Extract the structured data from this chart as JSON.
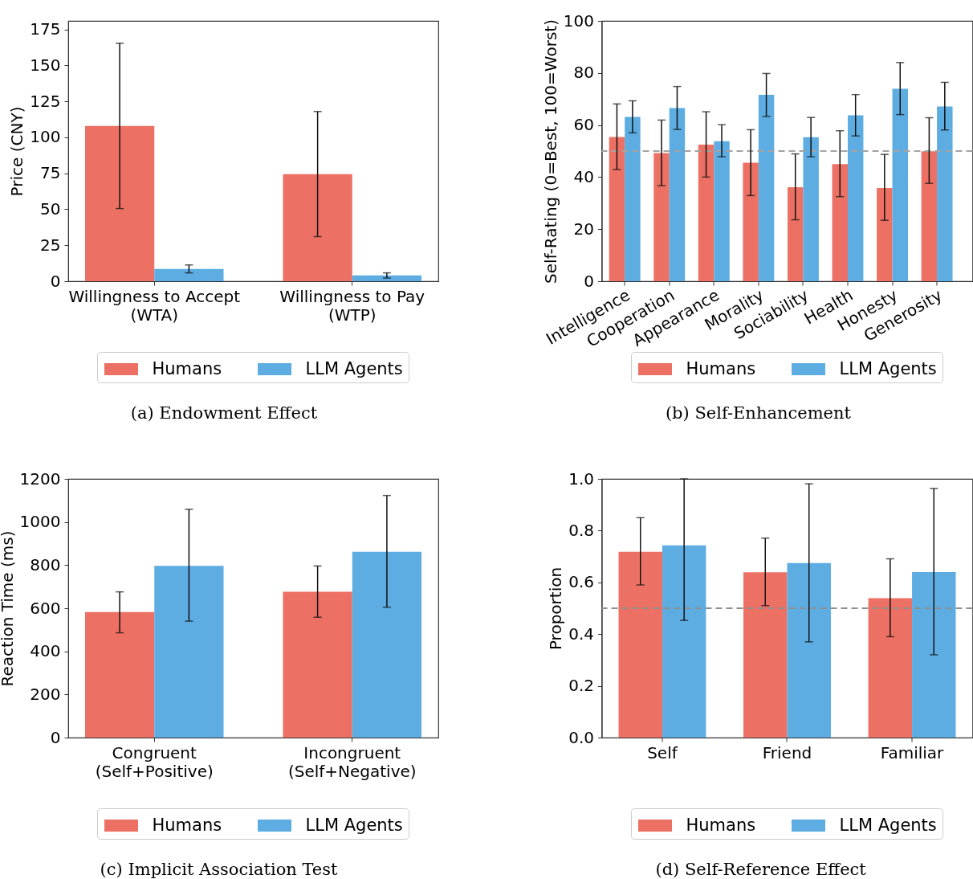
{
  "chart_data": [
    {
      "type": "bar",
      "title": "(a) Endowment Effect",
      "ylabel": "Price (CNY)",
      "categories": [
        "Willingness to Accept\n(WTA)",
        "Willingness to Pay\n(WTP)"
      ],
      "series": [
        {
          "name": "Humans",
          "color": "#ec7063",
          "values": [
            108,
            74.5
          ],
          "errors": [
            [
              50.5,
              165.5
            ],
            [
              31,
              118
            ]
          ]
        },
        {
          "name": "LLM Agents",
          "color": "#5dade2",
          "values": [
            8.5,
            4
          ],
          "errors": [
            [
              5.8,
              11.3
            ],
            [
              2.2,
              5.8
            ]
          ]
        }
      ],
      "ylim": [
        0,
        181
      ],
      "yticks": [
        0,
        25,
        50,
        75,
        100,
        125,
        150,
        175
      ],
      "legend": "bottom"
    },
    {
      "type": "bar",
      "title": "(b) Self-Enhancement",
      "ylabel": "Self-Rating (0=Best, 100=Worst)",
      "categories": [
        "Intelligence",
        "Cooperation",
        "Appearance",
        "Morality",
        "Sociability",
        "Health",
        "Honesty",
        "Generosity"
      ],
      "series": [
        {
          "name": "Humans",
          "color": "#ec7063",
          "values": [
            55.4,
            49.2,
            52.5,
            45.5,
            36.1,
            45.0,
            35.8,
            49.9
          ],
          "errors": [
            [
              42.9,
              68.1
            ],
            [
              36.7,
              61.9
            ],
            [
              40.0,
              65.1
            ],
            [
              32.9,
              58.2
            ],
            [
              23.6,
              48.9
            ],
            [
              32.5,
              57.8
            ],
            [
              23.4,
              48.7
            ],
            [
              37.6,
              62.8
            ]
          ]
        },
        {
          "name": "LLM Agents",
          "color": "#5dade2",
          "values": [
            63.1,
            66.5,
            53.8,
            71.6,
            55.3,
            63.7,
            73.9,
            67.1
          ],
          "errors": [
            [
              57.0,
              69.3
            ],
            [
              58.3,
              74.8
            ],
            [
              47.8,
              60.1
            ],
            [
              63.3,
              79.8
            ],
            [
              47.8,
              62.9
            ],
            [
              55.8,
              71.7
            ],
            [
              64.0,
              84.0
            ],
            [
              58.1,
              76.4
            ]
          ]
        }
      ],
      "ylim": [
        0,
        100
      ],
      "yticks": [
        0,
        20,
        40,
        60,
        80,
        100
      ],
      "ref_lines": [
        {
          "axis": "y",
          "value": 50,
          "color": "#a3a3a3",
          "line_style": "dashed"
        }
      ],
      "legend": "bottom"
    },
    {
      "type": "bar",
      "title": "(c) Implicit Association Test",
      "ylabel": "Reaction Time (ms)",
      "categories": [
        "Congruent\n(Self+Positive)",
        "Incongruent\n(Self+Negative)"
      ],
      "series": [
        {
          "name": "Humans",
          "color": "#ec7063",
          "values": [
            582,
            676
          ],
          "errors": [
            [
              486,
              676
            ],
            [
              558,
              796
            ]
          ]
        },
        {
          "name": "LLM Agents",
          "color": "#5dade2",
          "values": [
            797,
            862
          ],
          "errors": [
            [
              540,
              1059
            ],
            [
              605,
              1123
            ]
          ]
        }
      ],
      "ylim": [
        0,
        1200
      ],
      "yticks": [
        0,
        200,
        400,
        600,
        800,
        1000,
        1200
      ],
      "legend": "bottom"
    },
    {
      "type": "bar",
      "title": "(d) Self-Reference Effect",
      "ylabel": "Proportion",
      "categories": [
        "Self",
        "Friend",
        "Familiar"
      ],
      "series": [
        {
          "name": "Humans",
          "color": "#ec7063",
          "values": [
            0.718,
            0.639,
            0.539
          ],
          "errors": [
            [
              0.59,
              0.85
            ],
            [
              0.51,
              0.771
            ],
            [
              0.39,
              0.691
            ]
          ]
        },
        {
          "name": "LLM Agents",
          "color": "#5dade2",
          "values": [
            0.743,
            0.675,
            0.64
          ],
          "errors": [
            [
              0.453,
              1.0
            ],
            [
              0.37,
              0.981
            ],
            [
              0.32,
              0.963
            ]
          ]
        }
      ],
      "ylim": [
        0,
        1
      ],
      "yticks": [
        {
          "value": 0,
          "label": "0.0"
        },
        0.2,
        0.4,
        0.6,
        0.8,
        {
          "value": 1,
          "label": "1.0"
        }
      ],
      "ref_lines": [
        {
          "axis": "y",
          "value": 0.5,
          "color": "#8f8f8f",
          "line_style": "dashed"
        }
      ],
      "legend": "bottom"
    }
  ]
}
